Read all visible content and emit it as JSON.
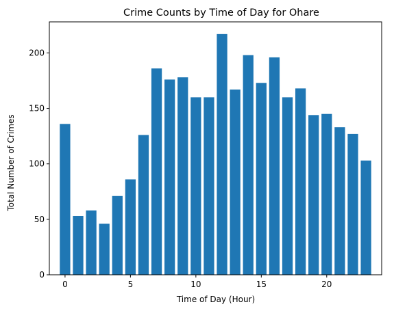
{
  "chart_data": {
    "type": "bar",
    "title": "Crime Counts by Time of Day for Ohare",
    "xlabel": "Time of Day (Hour)",
    "ylabel": "Total Number of Crimes",
    "x": [
      0,
      1,
      2,
      3,
      4,
      5,
      6,
      7,
      8,
      9,
      10,
      11,
      12,
      13,
      14,
      15,
      16,
      17,
      18,
      19,
      20,
      21,
      22,
      23
    ],
    "values": [
      136,
      53,
      58,
      46,
      71,
      86,
      126,
      186,
      176,
      178,
      160,
      160,
      217,
      167,
      198,
      173,
      196,
      160,
      168,
      144,
      145,
      133,
      127,
      103
    ],
    "xlim": [
      -1.2,
      24.2
    ],
    "ylim": [
      0,
      228
    ],
    "xticks": [
      0,
      5,
      10,
      15,
      20
    ],
    "yticks": [
      0,
      50,
      100,
      150,
      200
    ],
    "bar_color": "#1f77b4",
    "grid": false
  }
}
